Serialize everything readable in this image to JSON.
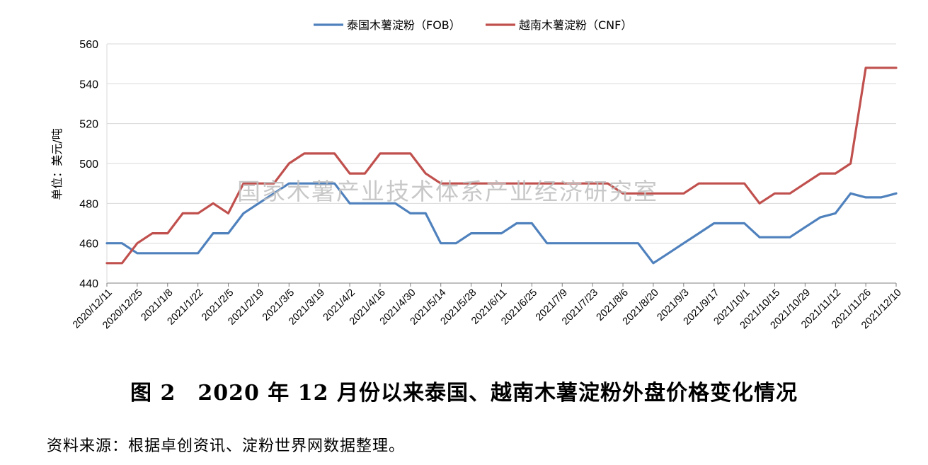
{
  "chart_data": {
    "type": "line",
    "ylabel": "单位：美元/吨",
    "ylim": [
      440,
      560
    ],
    "yticks": [
      440,
      460,
      480,
      500,
      520,
      540,
      560
    ],
    "grid": true,
    "legend_position": "top-center",
    "x": [
      "2020/12/11",
      "2020/12/18",
      "2020/12/25",
      "2021/1/1",
      "2021/1/8",
      "2021/1/15",
      "2021/1/22",
      "2021/1/29",
      "2021/2/5",
      "2021/2/12",
      "2021/2/19",
      "2021/2/26",
      "2021/3/5",
      "2021/3/12",
      "2021/3/19",
      "2021/3/26",
      "2021/4/2",
      "2021/4/9",
      "2021/4/16",
      "2021/4/23",
      "2021/4/30",
      "2021/5/7",
      "2021/5/14",
      "2021/5/21",
      "2021/5/28",
      "2021/6/4",
      "2021/6/11",
      "2021/6/18",
      "2021/6/25",
      "2021/7/2",
      "2021/7/9",
      "2021/7/16",
      "2021/7/23",
      "2021/7/30",
      "2021/8/6",
      "2021/8/13",
      "2021/8/20",
      "2021/8/27",
      "2021/9/3",
      "2021/9/10",
      "2021/9/17",
      "2021/9/24",
      "2021/10/1",
      "2021/10/8",
      "2021/10/15",
      "2021/10/22",
      "2021/10/29",
      "2021/11/5",
      "2021/11/12",
      "2021/11/19",
      "2021/11/26",
      "2021/12/3",
      "2021/12/10"
    ],
    "tick_labels": [
      "2020/12/11",
      "2020/12/25",
      "2021/1/8",
      "2021/1/22",
      "2021/2/5",
      "2021/2/19",
      "2021/3/5",
      "2021/3/19",
      "2021/4/2",
      "2021/4/16",
      "2021/4/30",
      "2021/5/14",
      "2021/5/28",
      "2021/6/11",
      "2021/6/25",
      "2021/7/9",
      "2021/7/23",
      "2021/8/6",
      "2021/8/20",
      "2021/9/3",
      "2021/9/17",
      "2021/10/1",
      "2021/10/15",
      "2021/10/29",
      "2021/11/12",
      "2021/11/26",
      "2021/12/10"
    ],
    "series": [
      {
        "name": "泰国木薯淀粉（FOB）",
        "color": "#4f81bd",
        "values": [
          460,
          460,
          455,
          455,
          455,
          455,
          455,
          465,
          465,
          475,
          480,
          485,
          490,
          490,
          490,
          490,
          480,
          480,
          480,
          480,
          475,
          475,
          460,
          460,
          465,
          465,
          465,
          470,
          470,
          460,
          460,
          460,
          460,
          460,
          460,
          460,
          450,
          455,
          460,
          465,
          470,
          470,
          470,
          463,
          463,
          463,
          468,
          473,
          475,
          485,
          483,
          483,
          485
        ]
      },
      {
        "name": "越南木薯淀粉（CNF）",
        "color": "#c0504d",
        "values": [
          450,
          450,
          460,
          465,
          465,
          475,
          475,
          480,
          475,
          490,
          490,
          490,
          500,
          505,
          505,
          505,
          495,
          495,
          505,
          505,
          505,
          495,
          490,
          490,
          490,
          490,
          490,
          490,
          490,
          490,
          490,
          490,
          490,
          490,
          485,
          485,
          485,
          485,
          485,
          490,
          490,
          490,
          490,
          480,
          485,
          485,
          490,
          495,
          495,
          500,
          548,
          548,
          548
        ]
      }
    ]
  },
  "watermark": "国家木薯产业技术体系产业经济研究室",
  "caption": "图 2　2020 年 12 月份以来泰国、越南木薯淀粉外盘价格变化情况",
  "source": "资料来源：根据卓创资讯、淀粉世界网数据整理。"
}
